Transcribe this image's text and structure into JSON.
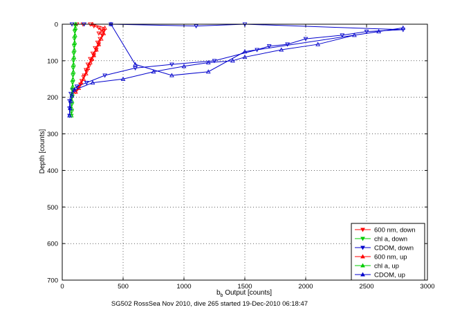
{
  "chart_data": {
    "type": "scatter",
    "title": "",
    "xlabel": "b_b Output [counts]",
    "xlabel_main": "b",
    "xlabel_sub": "b",
    "xlabel_rest": " Output [counts]",
    "ylabel": "Depth [counts]",
    "caption": "SG502 RossSea Nov 2010, dive 265 started 19-Dec-2010 06:18:47",
    "xlim": [
      0,
      3000
    ],
    "ylim": [
      0,
      700
    ],
    "y_reversed": true,
    "grid": true,
    "grid_style": "dotted",
    "legend_position": "bottom-right",
    "xticks": [
      0,
      500,
      1000,
      1500,
      2000,
      2500,
      3000
    ],
    "yticks": [
      0,
      100,
      200,
      300,
      400,
      500,
      600,
      700
    ],
    "series": [
      {
        "name": "600 nm, down",
        "color": "#ff0000",
        "marker": "triangle-down",
        "points": [
          [
            120,
            0
          ],
          [
            170,
            0
          ],
          [
            230,
            0
          ],
          [
            260,
            5
          ],
          [
            300,
            10
          ],
          [
            320,
            15
          ],
          [
            340,
            20
          ],
          [
            300,
            25
          ],
          [
            330,
            30
          ],
          [
            310,
            40
          ],
          [
            290,
            50
          ],
          [
            300,
            55
          ],
          [
            270,
            65
          ],
          [
            280,
            70
          ],
          [
            250,
            80
          ],
          [
            260,
            85
          ],
          [
            230,
            95
          ],
          [
            240,
            100
          ],
          [
            210,
            110
          ],
          [
            220,
            115
          ],
          [
            195,
            125
          ],
          [
            200,
            130
          ],
          [
            180,
            140
          ],
          [
            175,
            145
          ],
          [
            160,
            155
          ],
          [
            150,
            165
          ],
          [
            130,
            175
          ],
          [
            110,
            185
          ]
        ]
      },
      {
        "name": "chl a, down",
        "color": "#00cc00",
        "marker": "triangle-down",
        "points": [
          [
            105,
            0
          ],
          [
            103,
            20
          ],
          [
            100,
            40
          ],
          [
            98,
            60
          ],
          [
            95,
            80
          ],
          [
            92,
            100
          ],
          [
            90,
            120
          ],
          [
            88,
            140
          ],
          [
            85,
            160
          ],
          [
            82,
            180
          ],
          [
            80,
            200
          ],
          [
            78,
            220
          ],
          [
            76,
            240
          ],
          [
            75,
            250
          ]
        ]
      },
      {
        "name": "CDOM, down",
        "color": "#0000cc",
        "marker": "triangle-down",
        "points": [
          [
            80,
            0
          ],
          [
            180,
            0
          ],
          [
            400,
            0
          ],
          [
            1100,
            5
          ],
          [
            1500,
            0
          ],
          [
            2800,
            15
          ],
          [
            2500,
            20
          ],
          [
            2300,
            30
          ],
          [
            2000,
            40
          ],
          [
            1850,
            55
          ],
          [
            1700,
            60
          ],
          [
            1600,
            70
          ],
          [
            1250,
            100
          ],
          [
            900,
            110
          ],
          [
            600,
            120
          ],
          [
            350,
            140
          ],
          [
            200,
            160
          ],
          [
            120,
            170
          ],
          [
            90,
            180
          ],
          [
            70,
            190
          ],
          [
            60,
            210
          ],
          [
            60,
            230
          ],
          [
            60,
            250
          ]
        ]
      },
      {
        "name": "600 nm, up",
        "color": "#ff0000",
        "marker": "triangle-up",
        "points": [
          [
            110,
            185
          ],
          [
            135,
            175
          ],
          [
            155,
            160
          ],
          [
            175,
            150
          ],
          [
            195,
            135
          ],
          [
            210,
            120
          ],
          [
            230,
            105
          ],
          [
            245,
            95
          ],
          [
            260,
            85
          ],
          [
            280,
            70
          ],
          [
            300,
            55
          ],
          [
            320,
            40
          ],
          [
            340,
            25
          ],
          [
            350,
            10
          ],
          [
            250,
            0
          ]
        ]
      },
      {
        "name": "chl a, up",
        "color": "#00cc00",
        "marker": "triangle-up",
        "points": [
          [
            75,
            250
          ],
          [
            78,
            230
          ],
          [
            80,
            210
          ],
          [
            83,
            190
          ],
          [
            86,
            170
          ],
          [
            88,
            150
          ],
          [
            91,
            130
          ],
          [
            93,
            110
          ],
          [
            96,
            90
          ],
          [
            99,
            70
          ],
          [
            102,
            50
          ],
          [
            105,
            30
          ],
          [
            108,
            10
          ],
          [
            110,
            0
          ]
        ]
      },
      {
        "name": "CDOM, up",
        "color": "#0000cc",
        "marker": "triangle-up",
        "points": [
          [
            60,
            250
          ],
          [
            65,
            230
          ],
          [
            70,
            210
          ],
          [
            80,
            195
          ],
          [
            100,
            180
          ],
          [
            250,
            160
          ],
          [
            500,
            150
          ],
          [
            750,
            130
          ],
          [
            1000,
            115
          ],
          [
            1200,
            105
          ],
          [
            1400,
            100
          ],
          [
            1500,
            90
          ],
          [
            1800,
            70
          ],
          [
            2100,
            55
          ],
          [
            2400,
            30
          ],
          [
            2600,
            20
          ],
          [
            2800,
            10
          ],
          [
            1500,
            75
          ],
          [
            1200,
            130
          ],
          [
            900,
            140
          ],
          [
            600,
            110
          ],
          [
            400,
            0
          ]
        ]
      }
    ]
  }
}
